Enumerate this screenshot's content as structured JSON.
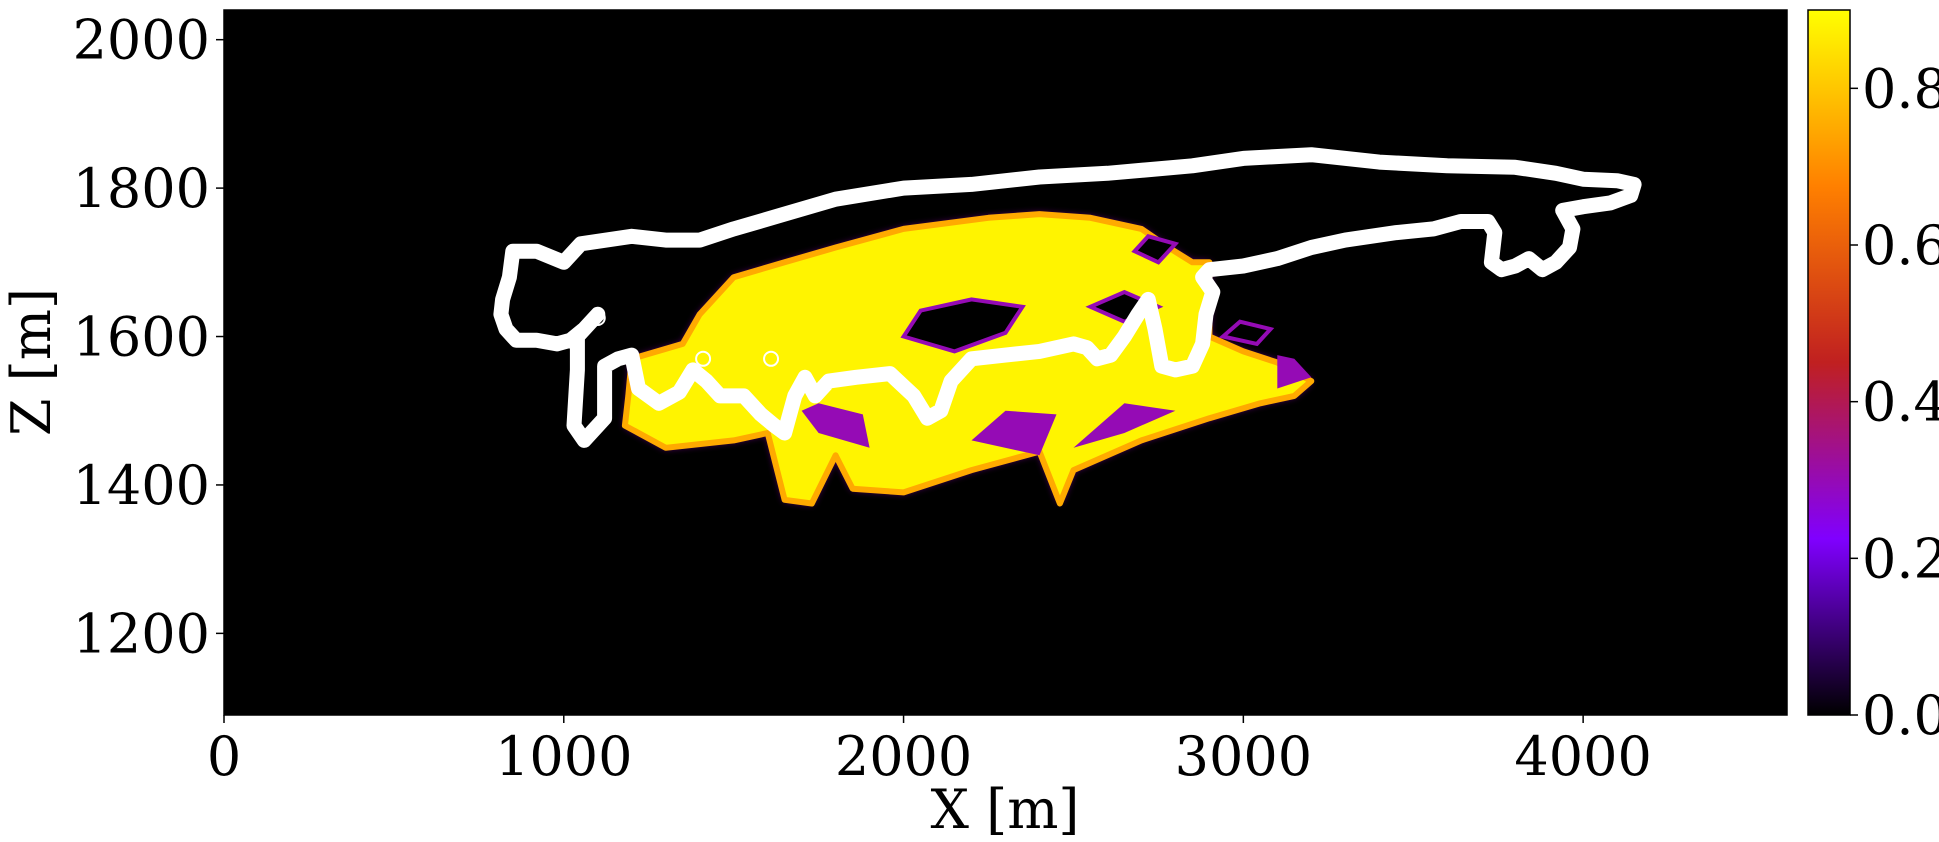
{
  "chart_data": {
    "type": "heatmap",
    "title": "",
    "xlabel": "X [m]",
    "ylabel": "Z [m]",
    "xlim": [
      0,
      4600
    ],
    "ylim": [
      2040,
      1090
    ],
    "y_inverted": true,
    "x_ticks": [
      0,
      1000,
      2000,
      3000,
      4000
    ],
    "x_tick_labels": [
      "0",
      "1000",
      "2000",
      "3000",
      "4000"
    ],
    "y_ticks": [
      1200,
      1400,
      1600,
      1800,
      2000
    ],
    "y_tick_labels": [
      "1200",
      "1400",
      "1600",
      "1800",
      "2000"
    ],
    "grid": false,
    "colormap": "gnuplot",
    "colorbar": {
      "range": [
        0.0,
        0.9
      ],
      "ticks": [
        0.0,
        0.2,
        0.4,
        0.6,
        0.8
      ],
      "tick_labels": [
        "0.0",
        "0.2",
        "0.4",
        "0.6",
        "0.8"
      ],
      "colors": [
        "#000000",
        "#8000ff",
        "#c02020",
        "#ff8000",
        "#ffff00"
      ]
    },
    "background_value": 0.0,
    "plume_high_value": 0.88,
    "plume_mid_value": 0.3,
    "plume_outline": [
      [
        1180,
        1480
      ],
      [
        1300,
        1450
      ],
      [
        1500,
        1460
      ],
      [
        1600,
        1470
      ],
      [
        1650,
        1380
      ],
      [
        1730,
        1375
      ],
      [
        1800,
        1440
      ],
      [
        1850,
        1395
      ],
      [
        2000,
        1390
      ],
      [
        2200,
        1420
      ],
      [
        2400,
        1445
      ],
      [
        2460,
        1375
      ],
      [
        2500,
        1420
      ],
      [
        2700,
        1460
      ],
      [
        2900,
        1490
      ],
      [
        3050,
        1510
      ],
      [
        3150,
        1520
      ],
      [
        3200,
        1540
      ],
      [
        3100,
        1565
      ],
      [
        3000,
        1580
      ],
      [
        2900,
        1600
      ],
      [
        2900,
        1700
      ],
      [
        2850,
        1700
      ],
      [
        2780,
        1720
      ],
      [
        2700,
        1745
      ],
      [
        2550,
        1760
      ],
      [
        2400,
        1765
      ],
      [
        2250,
        1760
      ],
      [
        2000,
        1745
      ],
      [
        1800,
        1720
      ],
      [
        1650,
        1700
      ],
      [
        1500,
        1680
      ],
      [
        1400,
        1630
      ],
      [
        1350,
        1590
      ],
      [
        1200,
        1570
      ],
      [
        1190,
        1520
      ]
    ],
    "plume_voids": [
      [
        [
          2000,
          1600
        ],
        [
          2150,
          1580
        ],
        [
          2300,
          1605
        ],
        [
          2350,
          1640
        ],
        [
          2200,
          1650
        ],
        [
          2050,
          1635
        ]
      ],
      [
        [
          2550,
          1640
        ],
        [
          2650,
          1620
        ],
        [
          2750,
          1640
        ],
        [
          2650,
          1660
        ]
      ],
      [
        [
          2680,
          1715
        ],
        [
          2750,
          1700
        ],
        [
          2800,
          1725
        ],
        [
          2720,
          1735
        ]
      ],
      [
        [
          2940,
          1600
        ],
        [
          3040,
          1590
        ],
        [
          3080,
          1610
        ],
        [
          2990,
          1620
        ]
      ]
    ],
    "plume_violet_patches": [
      [
        [
          1700,
          1500
        ],
        [
          1750,
          1470
        ],
        [
          1900,
          1450
        ],
        [
          1880,
          1495
        ],
        [
          1750,
          1510
        ]
      ],
      [
        [
          2200,
          1460
        ],
        [
          2400,
          1440
        ],
        [
          2450,
          1495
        ],
        [
          2300,
          1500
        ]
      ],
      [
        [
          2500,
          1450
        ],
        [
          2650,
          1470
        ],
        [
          2800,
          1500
        ],
        [
          2650,
          1510
        ]
      ],
      [
        [
          3100,
          1530
        ],
        [
          3200,
          1545
        ],
        [
          3150,
          1570
        ],
        [
          3100,
          1575
        ]
      ]
    ],
    "contour_line": {
      "color": "#ffffff",
      "points": [
        [
          1100,
          1630
        ],
        [
          1040,
          1600
        ],
        [
          1040,
          1555
        ],
        [
          1030,
          1480
        ],
        [
          1060,
          1460
        ],
        [
          1120,
          1490
        ],
        [
          1120,
          1560
        ],
        [
          1160,
          1570
        ],
        [
          1200,
          1575
        ],
        [
          1220,
          1530
        ],
        [
          1280,
          1510
        ],
        [
          1340,
          1525
        ],
        [
          1380,
          1555
        ],
        [
          1420,
          1540
        ],
        [
          1460,
          1520
        ],
        [
          1530,
          1520
        ],
        [
          1580,
          1495
        ],
        [
          1620,
          1480
        ],
        [
          1650,
          1470
        ],
        [
          1680,
          1520
        ],
        [
          1710,
          1545
        ],
        [
          1740,
          1520
        ],
        [
          1780,
          1540
        ],
        [
          1860,
          1545
        ],
        [
          1960,
          1550
        ],
        [
          2030,
          1520
        ],
        [
          2070,
          1490
        ],
        [
          2110,
          1500
        ],
        [
          2140,
          1540
        ],
        [
          2200,
          1570
        ],
        [
          2300,
          1575
        ],
        [
          2400,
          1580
        ],
        [
          2500,
          1590
        ],
        [
          2540,
          1585
        ],
        [
          2570,
          1570
        ],
        [
          2610,
          1575
        ],
        [
          2650,
          1600
        ],
        [
          2690,
          1630
        ],
        [
          2720,
          1650
        ],
        [
          2740,
          1610
        ],
        [
          2760,
          1560
        ],
        [
          2800,
          1555
        ],
        [
          2850,
          1560
        ],
        [
          2880,
          1590
        ],
        [
          2890,
          1630
        ],
        [
          2910,
          1660
        ],
        [
          2880,
          1680
        ],
        [
          2900,
          1690
        ],
        [
          3000,
          1695
        ],
        [
          3100,
          1705
        ],
        [
          3200,
          1720
        ],
        [
          3300,
          1730
        ],
        [
          3450,
          1740
        ],
        [
          3560,
          1745
        ],
        [
          3640,
          1755
        ],
        [
          3720,
          1755
        ],
        [
          3740,
          1740
        ],
        [
          3730,
          1700
        ],
        [
          3760,
          1690
        ],
        [
          3800,
          1695
        ],
        [
          3840,
          1705
        ],
        [
          3880,
          1690
        ],
        [
          3920,
          1700
        ],
        [
          3960,
          1720
        ],
        [
          3970,
          1745
        ],
        [
          3940,
          1770
        ],
        [
          4000,
          1775
        ],
        [
          4080,
          1780
        ],
        [
          4140,
          1790
        ],
        [
          4150,
          1805
        ],
        [
          4100,
          1810
        ],
        [
          4000,
          1812
        ],
        [
          3920,
          1820
        ],
        [
          3800,
          1828
        ],
        [
          3600,
          1830
        ],
        [
          3400,
          1835
        ],
        [
          3200,
          1845
        ],
        [
          3000,
          1840
        ],
        [
          2850,
          1830
        ],
        [
          2600,
          1820
        ],
        [
          2400,
          1815
        ],
        [
          2200,
          1805
        ],
        [
          2000,
          1800
        ],
        [
          1800,
          1785
        ],
        [
          1650,
          1765
        ],
        [
          1500,
          1745
        ],
        [
          1400,
          1730
        ],
        [
          1300,
          1730
        ],
        [
          1200,
          1735
        ],
        [
          1050,
          1725
        ],
        [
          1000,
          1700
        ],
        [
          920,
          1715
        ],
        [
          850,
          1715
        ],
        [
          840,
          1680
        ],
        [
          820,
          1650
        ],
        [
          815,
          1630
        ],
        [
          830,
          1610
        ],
        [
          860,
          1595
        ],
        [
          920,
          1595
        ],
        [
          980,
          1590
        ],
        [
          1020,
          1595
        ],
        [
          1060,
          1610
        ],
        [
          1100,
          1630
        ]
      ]
    },
    "well_markers": [
      [
        1410,
        1570
      ],
      [
        1610,
        1570
      ],
      [
        1100,
        1625
      ]
    ]
  }
}
